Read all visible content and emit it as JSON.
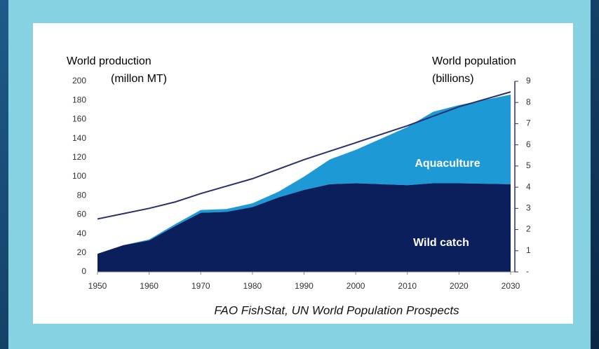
{
  "chart_data": {
    "type": "stacked-area-line",
    "annotations": {
      "left_axis_title": "World production",
      "left_axis_unit": "(millon MT)",
      "right_axis_title": "World population",
      "right_axis_unit": "(billions)",
      "source": "FAO FishStat, UN World Population Prospects"
    },
    "x": [
      1950,
      1955,
      1960,
      1965,
      1970,
      1975,
      1980,
      1985,
      1990,
      1995,
      2000,
      2005,
      2010,
      2015,
      2020,
      2030
    ],
    "series": [
      {
        "name": "Wild catch",
        "color": "#0a1f5c",
        "kind": "area",
        "values": [
          19,
          28,
          33,
          48,
          62,
          63,
          68,
          78,
          86,
          92,
          93,
          92,
          91,
          93,
          93,
          92
        ]
      },
      {
        "name": "Aquaculture",
        "color": "#1d9ad6",
        "kind": "area",
        "values": [
          0,
          0,
          1,
          2,
          3,
          3,
          4,
          6,
          14,
          26,
          35,
          48,
          61,
          75,
          82,
          94
        ]
      },
      {
        "name": "World population",
        "color": "#2b2f6b",
        "kind": "line",
        "axis": "y2",
        "values": [
          2.5,
          2.75,
          3.0,
          3.3,
          3.7,
          4.05,
          4.4,
          4.85,
          5.3,
          5.7,
          6.1,
          6.5,
          6.9,
          7.35,
          7.8,
          8.5
        ]
      }
    ],
    "xlim": [
      1950,
      2030
    ],
    "xticks": [
      1950,
      1960,
      1970,
      1980,
      1990,
      2000,
      2010,
      2020,
      2030
    ],
    "ylim": [
      0,
      200
    ],
    "yticks": [
      0,
      20,
      40,
      60,
      80,
      100,
      120,
      140,
      160,
      180,
      200
    ],
    "y2lim": [
      0,
      9
    ],
    "y2ticks": [
      {
        "value": 0,
        "label": "-"
      },
      1,
      2,
      3,
      4,
      5,
      6,
      7,
      8,
      9
    ]
  }
}
